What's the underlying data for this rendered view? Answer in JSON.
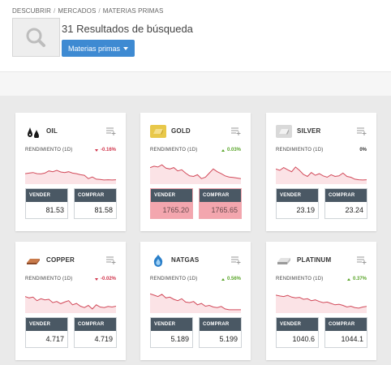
{
  "breadcrumb": [
    "DESCUBRIR",
    "MERCADOS",
    "MATERIAS PRIMAS"
  ],
  "results_title": "31 Resultados de búsqueda",
  "filter_button": "Materias primas",
  "rend_label": "RENDIMIENTO (1D)",
  "sell_label": "VENDER",
  "buy_label": "COMPRAR",
  "colors": {
    "accent": "#3e8ad2",
    "down": "#d0344b",
    "up": "#5aa52a",
    "spark_line": "#d24a5a",
    "highlight": "#f3a6ae"
  },
  "cards": [
    {
      "name": "OIL",
      "icon": "oil-drop-icon",
      "change": "-0.16%",
      "direction": "down",
      "sell": "81.53",
      "buy": "81.58",
      "highlight": false,
      "spark": [
        0.62,
        0.6,
        0.58,
        0.62,
        0.63,
        0.6,
        0.52,
        0.55,
        0.5,
        0.56,
        0.58,
        0.55,
        0.6,
        0.62,
        0.66,
        0.68,
        0.8,
        0.74,
        0.82,
        0.83,
        0.85,
        0.84,
        0.85,
        0.84
      ]
    },
    {
      "name": "GOLD",
      "icon": "gold-bar-icon",
      "change": "0.03%",
      "direction": "up",
      "sell": "1765.20",
      "buy": "1765.65",
      "highlight": true,
      "spark": [
        0.4,
        0.35,
        0.38,
        0.3,
        0.42,
        0.45,
        0.4,
        0.52,
        0.48,
        0.6,
        0.7,
        0.72,
        0.66,
        0.8,
        0.75,
        0.6,
        0.45,
        0.55,
        0.62,
        0.7,
        0.74,
        0.76,
        0.78,
        0.8
      ]
    },
    {
      "name": "SILVER",
      "icon": "silver-bar-icon",
      "change": "0%",
      "direction": "flat",
      "sell": "23.19",
      "buy": "23.24",
      "highlight": false,
      "spark": [
        0.45,
        0.5,
        0.4,
        0.48,
        0.55,
        0.38,
        0.5,
        0.65,
        0.72,
        0.58,
        0.68,
        0.62,
        0.7,
        0.75,
        0.66,
        0.72,
        0.7,
        0.6,
        0.72,
        0.75,
        0.82,
        0.84,
        0.85,
        0.84
      ]
    },
    {
      "name": "COPPER",
      "icon": "copper-bar-icon",
      "change": "-0.02%",
      "direction": "down",
      "sell": "4.717",
      "buy": "4.719",
      "highlight": false,
      "spark": [
        0.4,
        0.45,
        0.42,
        0.55,
        0.48,
        0.52,
        0.5,
        0.62,
        0.58,
        0.66,
        0.6,
        0.55,
        0.7,
        0.65,
        0.75,
        0.8,
        0.72,
        0.85,
        0.7,
        0.78,
        0.8,
        0.76,
        0.78,
        0.75
      ]
    },
    {
      "name": "NATGAS",
      "icon": "gas-flame-icon",
      "change": "0.56%",
      "direction": "up",
      "sell": "5.189",
      "buy": "5.199",
      "highlight": false,
      "spark": [
        0.3,
        0.35,
        0.4,
        0.32,
        0.45,
        0.42,
        0.5,
        0.55,
        0.48,
        0.6,
        0.62,
        0.58,
        0.7,
        0.65,
        0.75,
        0.72,
        0.78,
        0.8,
        0.76,
        0.85,
        0.88,
        0.88,
        0.88,
        0.88
      ]
    },
    {
      "name": "PLATINUM",
      "icon": "platinum-bar-icon",
      "change": "0.37%",
      "direction": "up",
      "sell": "1040.6",
      "buy": "1044.1",
      "highlight": false,
      "spark": [
        0.35,
        0.38,
        0.4,
        0.36,
        0.42,
        0.45,
        0.43,
        0.5,
        0.48,
        0.55,
        0.52,
        0.58,
        0.62,
        0.6,
        0.65,
        0.7,
        0.68,
        0.72,
        0.78,
        0.75,
        0.8,
        0.82,
        0.78,
        0.76
      ]
    }
  ]
}
